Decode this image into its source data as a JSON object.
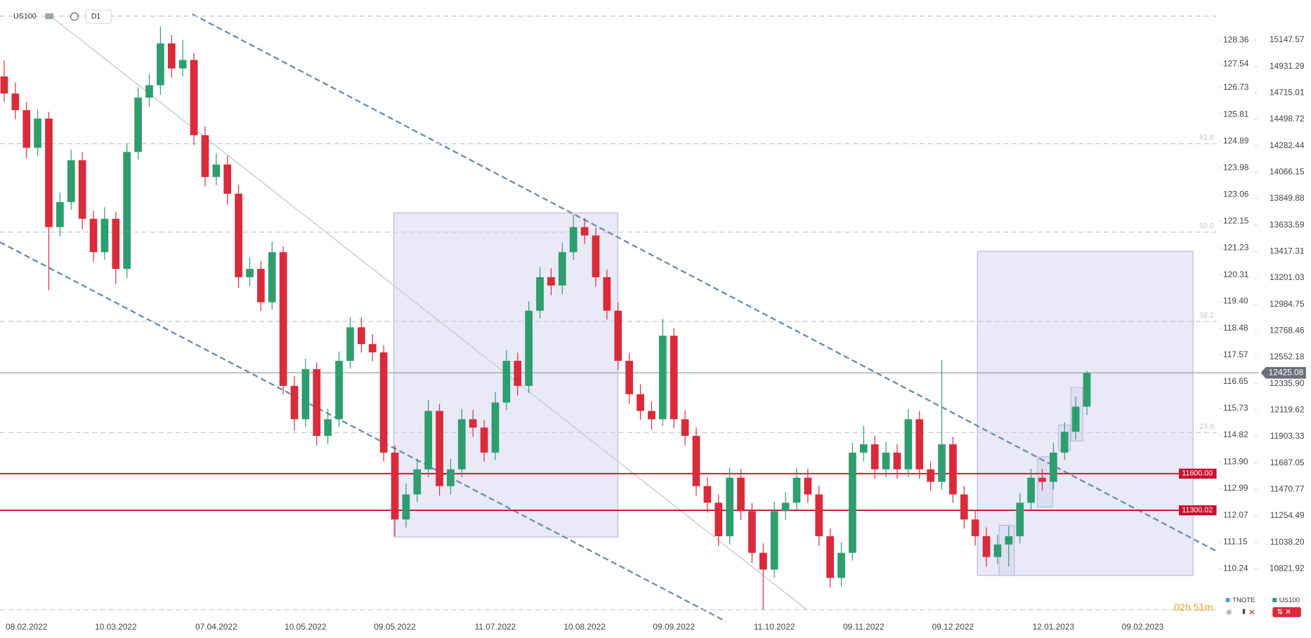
{
  "chart_data": {
    "type": "candlestick",
    "symbol": "US100",
    "interval": "D1",
    "countdown": "02h 51m",
    "up_color": "#2e9e6e",
    "down_color": "#d92b3a",
    "grid": false,
    "ylim": [
      10418.8,
      15461.9
    ],
    "yticks": [
      15147.57,
      14931.29,
      14715.01,
      14498.72,
      14282.44,
      14066.15,
      13849.88,
      13633.59,
      13417.31,
      13201.03,
      12984.75,
      12768.46,
      12552.18,
      {
        "value": 12335.9,
        "label": "12335.90"
      },
      12119.62,
      11903.33,
      11687.05,
      11470.77,
      11254.49,
      {
        "value": 11038.2,
        "label": "11038.20"
      },
      10821.92
    ],
    "y2lim": [
      108.55,
      129.68
    ],
    "y2ticks": [
      128.36,
      127.54,
      126.73,
      125.81,
      124.89,
      123.98,
      123.06,
      122.15,
      121.23,
      120.31,
      {
        "value": 119.4,
        "label": "119.40"
      },
      118.48,
      117.57,
      116.65,
      115.73,
      114.82,
      {
        "value": 113.9,
        "label": "113.90"
      },
      112.99,
      112.07,
      111.15,
      110.24
    ],
    "last_price": 12425.08,
    "levels": [
      {
        "value": 11600,
        "label": "11600.00",
        "color": "#c8102e"
      },
      {
        "value": 11300.02,
        "label": "11300.02",
        "color": "#c8102e"
      }
    ],
    "fib_levels": [
      {
        "value": 15343
      },
      {
        "value": 14300,
        "label": "61.8"
      },
      {
        "value": 13576,
        "label": "50.0"
      },
      {
        "value": 12845,
        "label": "38.2"
      },
      {
        "value": 11936,
        "label": "23.6"
      },
      {
        "value": 10487
      }
    ],
    "legend": [
      {
        "name": "TNOTE",
        "color": "#4aa3df"
      },
      {
        "name": "US100",
        "color": "#2e9e6e"
      }
    ],
    "categories": [
      null,
      null,
      "08.02.2022",
      null,
      null,
      null,
      null,
      null,
      null,
      null,
      "10.03.2022",
      null,
      null,
      null,
      null,
      null,
      null,
      null,
      null,
      "07.04.2022",
      null,
      null,
      null,
      null,
      null,
      null,
      null,
      "10.05.2022",
      null,
      null,
      null,
      null,
      null,
      null,
      null,
      "09.05.2022",
      null,
      null,
      null,
      null,
      null,
      null,
      null,
      null,
      "11.07.2022",
      null,
      null,
      null,
      null,
      null,
      null,
      null,
      "10.08.2022",
      null,
      null,
      null,
      null,
      null,
      null,
      null,
      "09.09.2022",
      null,
      null,
      null,
      null,
      null,
      null,
      null,
      null,
      "11.10.2022",
      null,
      null,
      null,
      null,
      null,
      null,
      null,
      "09.11.2022",
      null,
      null,
      null,
      null,
      null,
      null,
      null,
      "09.12.2022",
      null,
      null,
      null,
      null,
      null,
      null,
      null,
      null,
      "12.01.2023",
      null,
      null,
      null,
      null,
      null,
      null,
      null,
      "09.02.2023",
      null,
      null,
      null
    ],
    "series": [
      {
        "name": "US100",
        "open": [
          14850,
          14710,
          14574,
          14266,
          14505,
          13617,
          13822,
          14164,
          13685,
          13412,
          13685,
          13275,
          14232,
          14676,
          14778,
          15120,
          14915,
          14984,
          14369,
          14027,
          14129,
          13890,
          13207,
          13275,
          13002,
          13412,
          12318,
          12045,
          12455,
          11909,
          12045,
          12523,
          12797,
          12660,
          12592,
          11772,
          11225,
          11430,
          11635,
          12113,
          11498,
          11635,
          12045,
          11977,
          11772,
          12182,
          12523,
          12318,
          12933,
          13207,
          13139,
          13412,
          13617,
          13549,
          13207,
          12933,
          12523,
          12250,
          12113,
          12045,
          12728,
          12045,
          11909,
          11498,
          11362,
          11088,
          11567,
          11293,
          10952,
          10815,
          11293,
          11362,
          11567,
          11430,
          11088,
          10747,
          10952,
          11772,
          11840,
          11635,
          11772,
          11635,
          12045,
          11635,
          11533,
          11840,
          11430,
          11225,
          11088,
          10918,
          11020,
          11088,
          11362,
          11567,
          11533,
          11772,
          11943,
          12148,
          null,
          null,
          null,
          null,
          null,
          null,
          null,
          null
        ],
        "high": [
          14980,
          14800,
          14640,
          14580,
          14560,
          13900,
          14250,
          14230,
          13750,
          13780,
          13740,
          14300,
          14760,
          14870,
          15257,
          15190,
          15150,
          15040,
          14440,
          14220,
          14200,
          13960,
          13370,
          13340,
          13500,
          13460,
          12400,
          12540,
          12510,
          12130,
          12600,
          12880,
          12880,
          12740,
          12650,
          11830,
          11520,
          11720,
          12200,
          12170,
          11720,
          12130,
          12120,
          12040,
          12270,
          12610,
          12590,
          13010,
          13290,
          13280,
          13490,
          13720,
          13690,
          13610,
          13270,
          13000,
          12590,
          12330,
          12190,
          12865,
          12790,
          12120,
          11980,
          11570,
          11430,
          11650,
          11640,
          11360,
          11030,
          11370,
          11450,
          11650,
          11640,
          11500,
          11150,
          11040,
          11850,
          11990,
          11910,
          11860,
          11840,
          12130,
          12110,
          11700,
          12530,
          11900,
          11500,
          11300,
          11160,
          11100,
          11170,
          11440,
          11640,
          11640,
          11850,
          12020,
          12230,
          12440,
          null,
          null,
          null,
          null,
          null,
          null,
          null,
          null
        ],
        "low": [
          14640,
          14500,
          14180,
          14200,
          13100,
          13540,
          13760,
          13600,
          13330,
          13350,
          13150,
          13200,
          14170,
          14600,
          14700,
          14840,
          14850,
          14290,
          13950,
          13960,
          13800,
          13120,
          13130,
          12930,
          12940,
          12250,
          11950,
          11980,
          11830,
          11840,
          11980,
          12460,
          12590,
          12520,
          11700,
          11088,
          11160,
          11370,
          11570,
          11420,
          11430,
          11570,
          11900,
          11700,
          11710,
          12120,
          12240,
          12260,
          12870,
          13060,
          13070,
          13350,
          13480,
          13130,
          12860,
          12450,
          12170,
          12040,
          11960,
          11990,
          11970,
          11830,
          11420,
          11280,
          11010,
          11020,
          11220,
          10870,
          10487,
          10750,
          11220,
          11300,
          11360,
          11010,
          10670,
          10680,
          10890,
          11700,
          11560,
          11570,
          11560,
          11570,
          11560,
          11460,
          11470,
          11360,
          11150,
          11010,
          10840,
          10860,
          10840,
          11030,
          11300,
          11460,
          11470,
          11710,
          11880,
          12080,
          null,
          null,
          null,
          null,
          null,
          null,
          null,
          null
        ],
        "close": [
          14710,
          14574,
          14266,
          14505,
          13617,
          13822,
          14164,
          13685,
          13412,
          13685,
          13275,
          14232,
          14676,
          14778,
          15120,
          14915,
          14984,
          14369,
          14027,
          14129,
          13890,
          13207,
          13275,
          13002,
          13412,
          12318,
          12045,
          12455,
          11909,
          12045,
          12523,
          12797,
          12660,
          12592,
          11772,
          11225,
          11430,
          11635,
          12113,
          11498,
          11635,
          12045,
          11977,
          11772,
          12182,
          12523,
          12318,
          12933,
          13207,
          13139,
          13412,
          13617,
          13549,
          13207,
          12933,
          12523,
          12250,
          12113,
          12045,
          12728,
          12045,
          11909,
          11498,
          11362,
          11088,
          11567,
          11293,
          10952,
          10815,
          11293,
          11362,
          11567,
          11430,
          11088,
          10747,
          10952,
          11772,
          11840,
          11635,
          11772,
          11635,
          12045,
          11635,
          11533,
          11840,
          11430,
          11225,
          11088,
          10918,
          11020,
          11088,
          11362,
          11567,
          11533,
          11772,
          11943,
          12148,
          12425.08,
          null,
          null,
          null,
          null,
          null,
          null,
          null,
          null
        ]
      }
    ]
  }
}
